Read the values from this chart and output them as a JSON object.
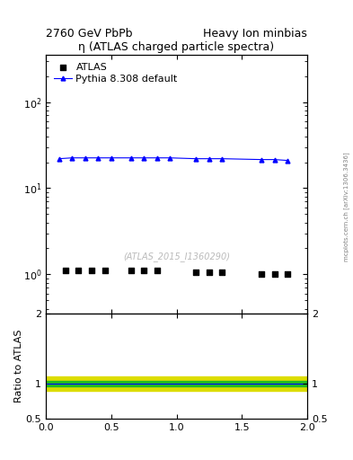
{
  "title_left": "2760 GeV PbPb",
  "title_right": "Heavy Ion minbias",
  "plot_title": "η (ATLAS charged particle spectra)",
  "watermark": "(ATLAS_2015_I1360290)",
  "mcplots_text": "mcplots.cern.ch [arXiv:1306.3436]",
  "ylabel_ratio": "Ratio to ATLAS",
  "xlim": [
    0,
    2
  ],
  "ylim_main": [
    0.35,
    350
  ],
  "ylim_ratio": [
    0.5,
    2.0
  ],
  "atlas_x": [
    0.15,
    0.25,
    0.35,
    0.45,
    0.65,
    0.75,
    0.85,
    1.15,
    1.25,
    1.35,
    1.65,
    1.75,
    1.85
  ],
  "atlas_y": [
    1.1,
    1.1,
    1.1,
    1.1,
    1.1,
    1.1,
    1.1,
    1.05,
    1.05,
    1.05,
    1.0,
    1.0,
    1.0
  ],
  "pythia_x": [
    0.1,
    0.2,
    0.3,
    0.4,
    0.5,
    0.65,
    0.75,
    0.85,
    0.95,
    1.15,
    1.25,
    1.35,
    1.65,
    1.75,
    1.85
  ],
  "pythia_y": [
    22.0,
    22.5,
    22.5,
    22.5,
    22.5,
    22.5,
    22.5,
    22.5,
    22.5,
    22.0,
    22.0,
    22.0,
    21.5,
    21.5,
    21.0
  ],
  "green_band_low": 0.96,
  "green_band_high": 1.04,
  "yellow_band_low": 0.9,
  "yellow_band_high": 1.1,
  "atlas_color": "black",
  "pythia_color": "blue",
  "atlas_marker": "s",
  "pythia_marker": "^",
  "atlas_label": "ATLAS",
  "pythia_label": "Pythia 8.308 default",
  "green_color": "#22bb22",
  "yellow_color": "#dddd00",
  "legend_fontsize": 8,
  "title_fontsize": 9,
  "plot_title_fontsize": 9,
  "ratio_ylabel_fontsize": 8,
  "tick_labelsize": 8,
  "watermark_color": "#bbbbbb",
  "watermark_fontsize": 7,
  "mcplots_fontsize": 5
}
